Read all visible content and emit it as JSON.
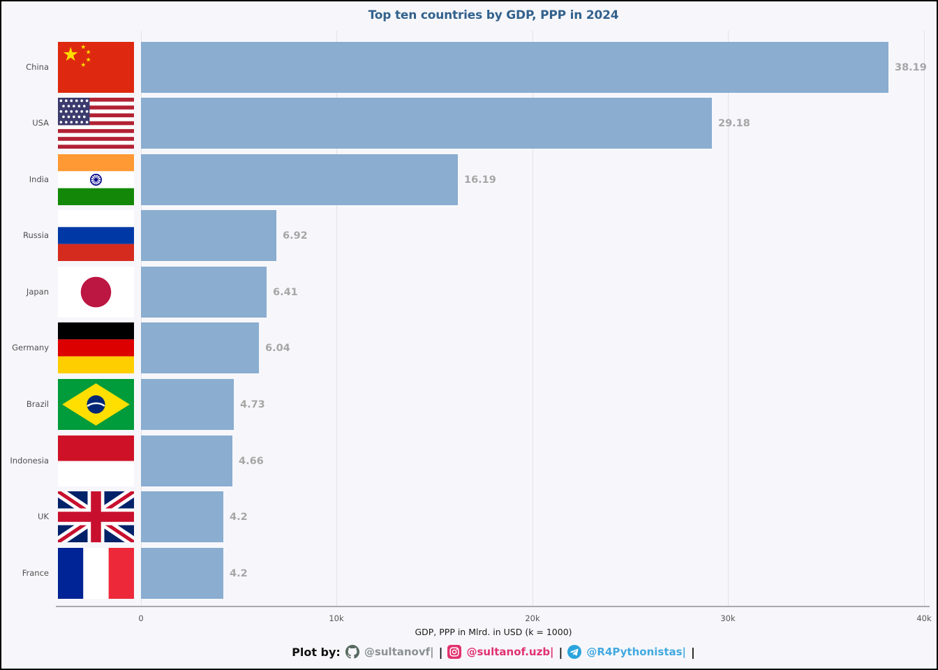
{
  "title": "Top ten countries by GDP, PPP in 2024",
  "chart_data": {
    "type": "bar",
    "orientation": "horizontal",
    "title": "Top ten countries by GDP, PPP in 2024",
    "categories": [
      "China",
      "USA",
      "India",
      "Russia",
      "Japan",
      "Germany",
      "Brazil",
      "Indonesia",
      "UK",
      "France"
    ],
    "values": [
      38.19,
      29.18,
      16.19,
      6.92,
      6.41,
      6.04,
      4.73,
      4.66,
      4.2,
      4.2
    ],
    "value_labels": [
      "38.19",
      "29.18",
      "16.19",
      "6.92",
      "6.41",
      "6.04",
      "4.73",
      "4.66",
      "4.2",
      "4.2"
    ],
    "value_unit": "k (thousands of Mlrd USD)",
    "xlabel": "GDP, PPP in Mlrd. in USD (k = 1000)",
    "ylabel": "",
    "xlim": [
      0,
      40
    ],
    "x_ticks": [
      0,
      10,
      20,
      30,
      40
    ],
    "x_tick_labels": [
      "0",
      "10k",
      "20k",
      "30k",
      "40k"
    ],
    "grid": "vertical-only",
    "legend": "none",
    "bar_color": "#8aadd0",
    "flags": [
      "china-flag",
      "usa-flag",
      "india-flag",
      "russia-flag",
      "japan-flag",
      "germany-flag",
      "brazil-flag",
      "indonesia-flag",
      "uk-flag",
      "france-flag"
    ]
  },
  "footer": {
    "prefix": "Plot by:",
    "separator": "|",
    "credits": [
      {
        "icon": "github-icon",
        "handle": "@sultanovf|",
        "color": "#8a9190"
      },
      {
        "icon": "instagram-icon",
        "handle": "@sultanof.uzb|",
        "color": "#e1326e"
      },
      {
        "icon": "telegram-icon",
        "handle": "@R4Pythonistas|",
        "color": "#42a9e0"
      }
    ]
  },
  "colors": {
    "background": "#f7f7fb",
    "title": "#33618c",
    "bar": "#8aadd0",
    "value_label": "#a6a6a6",
    "gridline": "#e2e2e8",
    "axis_line": "#a8a8ae"
  }
}
